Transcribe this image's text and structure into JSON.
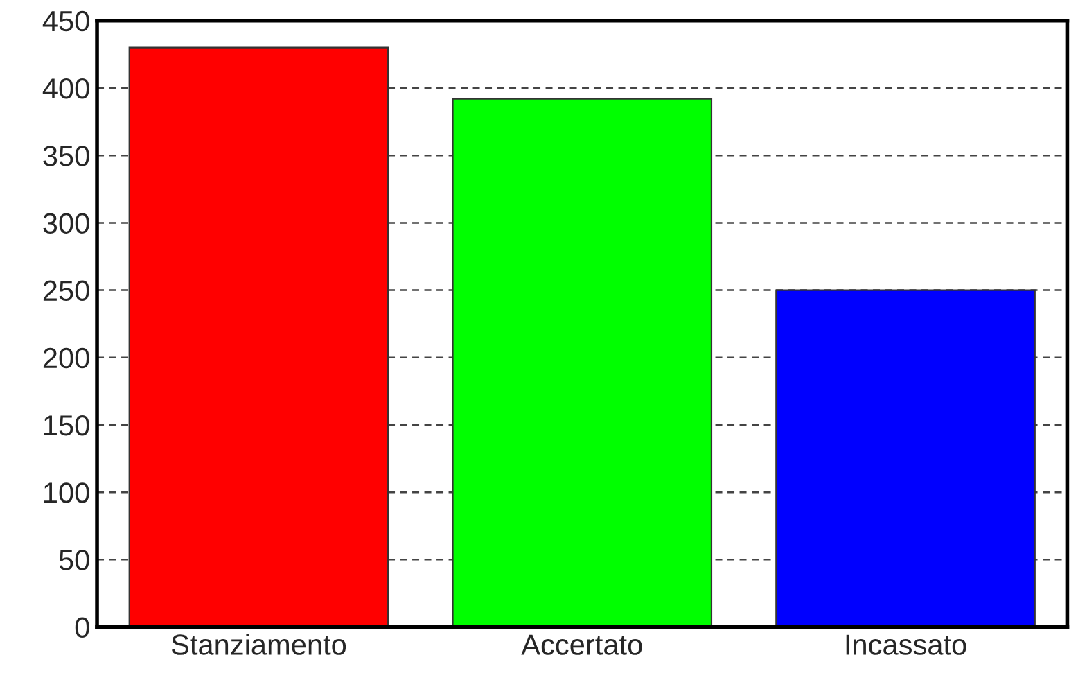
{
  "chart_data": {
    "type": "bar",
    "categories": [
      "Stanziamento",
      "Accertato",
      "Incassato"
    ],
    "values": [
      430,
      392,
      250
    ],
    "colors": [
      "#ff0000",
      "#00ff00",
      "#0000ff"
    ],
    "ylim": [
      0,
      450
    ],
    "yticks": [
      0,
      50,
      100,
      150,
      200,
      250,
      300,
      350,
      400,
      450
    ],
    "grid": "y"
  }
}
